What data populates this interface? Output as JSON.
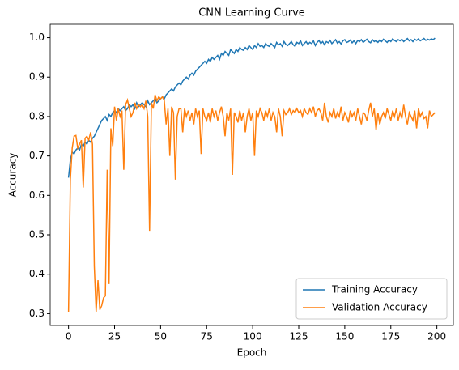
{
  "chart_data": {
    "type": "line",
    "title": "CNN Learning Curve",
    "x_label": "Epoch",
    "y_label": "Accuracy",
    "x": [
      0,
      1,
      2,
      3,
      4,
      5,
      6,
      7,
      8,
      9,
      10,
      11,
      12,
      13,
      14,
      15,
      16,
      17,
      18,
      19,
      20,
      21,
      22,
      23,
      24,
      25,
      26,
      27,
      28,
      29,
      30,
      31,
      32,
      33,
      34,
      35,
      36,
      37,
      38,
      39,
      40,
      41,
      42,
      43,
      44,
      45,
      46,
      47,
      48,
      49,
      50,
      51,
      52,
      53,
      54,
      55,
      56,
      57,
      58,
      59,
      60,
      61,
      62,
      63,
      64,
      65,
      66,
      67,
      68,
      69,
      70,
      71,
      72,
      73,
      74,
      75,
      76,
      77,
      78,
      79,
      80,
      81,
      82,
      83,
      84,
      85,
      86,
      87,
      88,
      89,
      90,
      91,
      92,
      93,
      94,
      95,
      96,
      97,
      98,
      99,
      100,
      101,
      102,
      103,
      104,
      105,
      106,
      107,
      108,
      109,
      110,
      111,
      112,
      113,
      114,
      115,
      116,
      117,
      118,
      119,
      120,
      121,
      122,
      123,
      124,
      125,
      126,
      127,
      128,
      129,
      130,
      131,
      132,
      133,
      134,
      135,
      136,
      137,
      138,
      139,
      140,
      141,
      142,
      143,
      144,
      145,
      146,
      147,
      148,
      149,
      150,
      151,
      152,
      153,
      154,
      155,
      156,
      157,
      158,
      159,
      160,
      161,
      162,
      163,
      164,
      165,
      166,
      167,
      168,
      169,
      170,
      171,
      172,
      173,
      174,
      175,
      176,
      177,
      178,
      179,
      180,
      181,
      182,
      183,
      184,
      185,
      186,
      187,
      188,
      189,
      190,
      191,
      192,
      193,
      194,
      195,
      196,
      197,
      198,
      199
    ],
    "series": [
      {
        "name": "Training Accuracy",
        "color": "#1f77b4",
        "values": [
          0.645,
          0.69,
          0.71,
          0.705,
          0.715,
          0.72,
          0.715,
          0.73,
          0.725,
          0.735,
          0.73,
          0.74,
          0.735,
          0.745,
          0.75,
          0.76,
          0.77,
          0.78,
          0.79,
          0.795,
          0.8,
          0.79,
          0.805,
          0.8,
          0.81,
          0.815,
          0.81,
          0.82,
          0.815,
          0.82,
          0.825,
          0.815,
          0.82,
          0.83,
          0.825,
          0.83,
          0.82,
          0.835,
          0.825,
          0.83,
          0.835,
          0.83,
          0.825,
          0.84,
          0.83,
          0.835,
          0.84,
          0.845,
          0.835,
          0.84,
          0.845,
          0.85,
          0.845,
          0.855,
          0.86,
          0.865,
          0.87,
          0.865,
          0.875,
          0.88,
          0.885,
          0.88,
          0.89,
          0.895,
          0.9,
          0.895,
          0.905,
          0.91,
          0.905,
          0.915,
          0.92,
          0.925,
          0.93,
          0.935,
          0.94,
          0.935,
          0.945,
          0.94,
          0.95,
          0.945,
          0.95,
          0.955,
          0.945,
          0.96,
          0.955,
          0.965,
          0.96,
          0.955,
          0.97,
          0.965,
          0.96,
          0.97,
          0.965,
          0.975,
          0.97,
          0.968,
          0.975,
          0.97,
          0.98,
          0.975,
          0.97,
          0.98,
          0.975,
          0.985,
          0.978,
          0.98,
          0.975,
          0.985,
          0.98,
          0.978,
          0.985,
          0.98,
          0.975,
          0.988,
          0.982,
          0.985,
          0.978,
          0.99,
          0.983,
          0.98,
          0.985,
          0.99,
          0.982,
          0.978,
          0.988,
          0.985,
          0.992,
          0.98,
          0.985,
          0.99,
          0.983,
          0.988,
          0.985,
          0.992,
          0.98,
          0.988,
          0.993,
          0.985,
          0.99,
          0.982,
          0.99,
          0.987,
          0.993,
          0.985,
          0.99,
          0.995,
          0.986,
          0.99,
          0.984,
          0.992,
          0.995,
          0.988,
          0.99,
          0.994,
          0.987,
          0.992,
          0.985,
          0.993,
          0.99,
          0.995,
          0.988,
          0.992,
          0.996,
          0.99,
          0.987,
          0.995,
          0.99,
          0.993,
          0.988,
          0.994,
          0.99,
          0.996,
          0.992,
          0.988,
          0.994,
          0.99,
          0.997,
          0.993,
          0.99,
          0.995,
          0.992,
          0.996,
          0.99,
          0.994,
          0.998,
          0.992,
          0.995,
          0.99,
          0.996,
          0.993,
          0.997,
          0.992,
          0.995,
          0.998,
          0.993,
          0.996,
          0.994,
          0.997,
          0.995,
          0.999
        ]
      },
      {
        "name": "Validation Accuracy",
        "color": "#ff7f0e",
        "values": [
          0.305,
          0.64,
          0.72,
          0.75,
          0.752,
          0.72,
          0.73,
          0.74,
          0.62,
          0.745,
          0.75,
          0.74,
          0.76,
          0.73,
          0.42,
          0.305,
          0.385,
          0.31,
          0.32,
          0.34,
          0.345,
          0.665,
          0.375,
          0.77,
          0.725,
          0.825,
          0.79,
          0.82,
          0.8,
          0.815,
          0.665,
          0.83,
          0.842,
          0.82,
          0.8,
          0.81,
          0.835,
          0.82,
          0.83,
          0.825,
          0.83,
          0.82,
          0.84,
          0.8,
          0.51,
          0.835,
          0.82,
          0.855,
          0.84,
          0.85,
          0.845,
          0.85,
          0.84,
          0.78,
          0.82,
          0.7,
          0.825,
          0.81,
          0.64,
          0.8,
          0.82,
          0.82,
          0.76,
          0.82,
          0.8,
          0.815,
          0.79,
          0.81,
          0.78,
          0.82,
          0.8,
          0.815,
          0.705,
          0.82,
          0.8,
          0.79,
          0.81,
          0.785,
          0.82,
          0.8,
          0.815,
          0.79,
          0.81,
          0.825,
          0.8,
          0.75,
          0.81,
          0.79,
          0.82,
          0.652,
          0.81,
          0.8,
          0.785,
          0.815,
          0.79,
          0.81,
          0.76,
          0.8,
          0.82,
          0.79,
          0.81,
          0.7,
          0.815,
          0.8,
          0.82,
          0.81,
          0.79,
          0.815,
          0.8,
          0.82,
          0.79,
          0.81,
          0.8,
          0.76,
          0.82,
          0.8,
          0.75,
          0.815,
          0.805,
          0.81,
          0.82,
          0.805,
          0.815,
          0.81,
          0.82,
          0.81,
          0.815,
          0.8,
          0.82,
          0.81,
          0.805,
          0.82,
          0.81,
          0.825,
          0.8,
          0.815,
          0.82,
          0.81,
          0.79,
          0.835,
          0.8,
          0.785,
          0.81,
          0.8,
          0.82,
          0.795,
          0.81,
          0.8,
          0.825,
          0.79,
          0.81,
          0.8,
          0.785,
          0.815,
          0.8,
          0.81,
          0.79,
          0.82,
          0.8,
          0.78,
          0.81,
          0.805,
          0.79,
          0.815,
          0.835,
          0.8,
          0.82,
          0.765,
          0.81,
          0.78,
          0.8,
          0.81,
          0.795,
          0.82,
          0.805,
          0.79,
          0.815,
          0.8,
          0.82,
          0.79,
          0.81,
          0.795,
          0.83,
          0.8,
          0.78,
          0.81,
          0.8,
          0.79,
          0.815,
          0.77,
          0.82,
          0.8,
          0.81,
          0.795,
          0.8,
          0.77,
          0.815,
          0.8,
          0.805,
          0.81
        ]
      }
    ],
    "xlim": [
      -9.95,
      208.95
    ],
    "xticks": [
      0,
      25,
      50,
      75,
      100,
      125,
      150,
      175,
      200
    ],
    "ylim": [
      0.27,
      1.034
    ],
    "yticks": [
      0.3,
      0.4,
      0.5,
      0.6,
      0.7,
      0.8,
      0.9,
      {
        "value": 1,
        "label": "1.0"
      }
    ],
    "legend": "lower right"
  }
}
